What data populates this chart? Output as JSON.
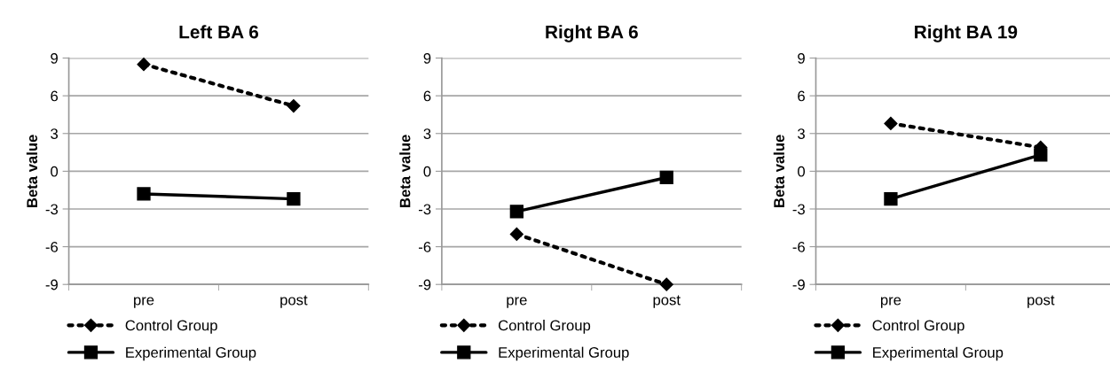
{
  "chart_data": [
    {
      "type": "line",
      "title": "Left BA 6",
      "ylabel": "Beta value",
      "categories": [
        "pre",
        "post"
      ],
      "ylim": [
        -9,
        9
      ],
      "yticks": [
        -9,
        -6,
        -3,
        0,
        3,
        6,
        9
      ],
      "grid": "y",
      "legend": "bottom",
      "series": [
        {
          "name": "Control Group",
          "color": "#000000",
          "values": [
            8.5,
            5.2
          ],
          "marker": "diamond",
          "line_style": "dotted"
        },
        {
          "name": "Experimental Group",
          "color": "#000000",
          "values": [
            -1.8,
            -2.2
          ],
          "marker": "square",
          "line_style": "solid"
        }
      ]
    },
    {
      "type": "line",
      "title": "Right BA 6",
      "ylabel": "Beta value",
      "categories": [
        "pre",
        "post"
      ],
      "ylim": [
        -9,
        9
      ],
      "yticks": [
        -9,
        -6,
        -3,
        0,
        3,
        6,
        9
      ],
      "grid": "y",
      "legend": "bottom",
      "series": [
        {
          "name": "Control Group",
          "color": "#000000",
          "values": [
            -5.0,
            -9.0
          ],
          "marker": "diamond",
          "line_style": "dotted"
        },
        {
          "name": "Experimental Group",
          "color": "#000000",
          "values": [
            -3.2,
            -0.5
          ],
          "marker": "square",
          "line_style": "solid"
        }
      ]
    },
    {
      "type": "line",
      "title": "Right BA 19",
      "ylabel": "Beta value",
      "categories": [
        "pre",
        "post"
      ],
      "ylim": [
        -9,
        9
      ],
      "yticks": [
        -9,
        -6,
        -3,
        0,
        3,
        6,
        9
      ],
      "grid": "y",
      "legend": "bottom",
      "series": [
        {
          "name": "Control Group",
          "color": "#000000",
          "values": [
            3.8,
            1.9
          ],
          "marker": "diamond",
          "line_style": "dotted"
        },
        {
          "name": "Experimental Group",
          "color": "#000000",
          "values": [
            -2.2,
            1.3
          ],
          "marker": "square",
          "line_style": "solid"
        }
      ]
    }
  ]
}
